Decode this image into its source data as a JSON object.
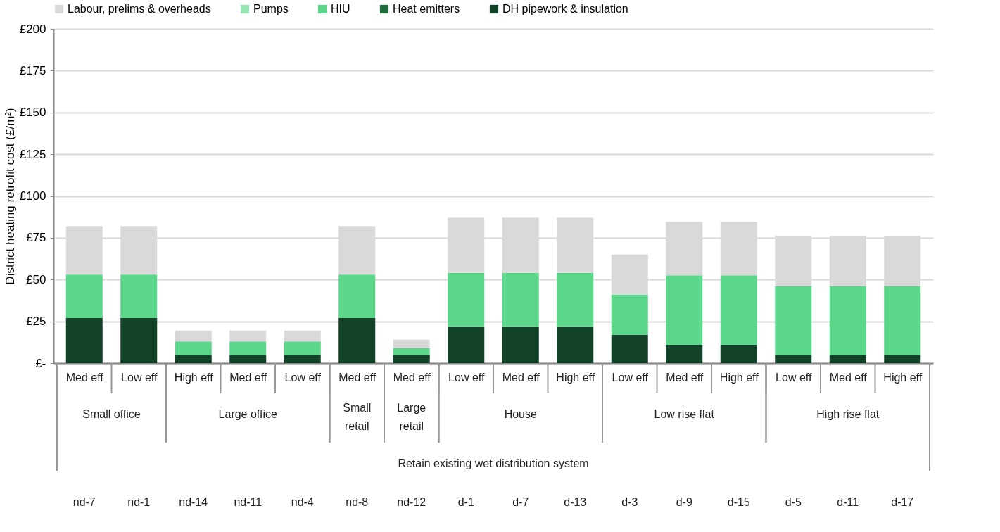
{
  "chart_data": {
    "type": "bar",
    "stacked": true,
    "ylabel": "District heating retrofit cost (£/m²)",
    "categories": [
      "Med eff",
      "Low eff",
      "High eff",
      "Med eff",
      "Low eff",
      "Med eff",
      "Med eff",
      "Low eff",
      "Med eff",
      "High eff",
      "Low eff",
      "Med eff",
      "High eff",
      "Low eff",
      "Med eff",
      "High eff"
    ],
    "series": [
      {
        "name": "DH pipework & insulation",
        "color": "#124228",
        "values": [
          27,
          27,
          5,
          5,
          5,
          27,
          5,
          22,
          22,
          22,
          17,
          11,
          11,
          5,
          5,
          5
        ]
      },
      {
        "name": "Heat emitters",
        "color": "#1e6b3c",
        "values": [
          0,
          0,
          0,
          0,
          0,
          0,
          0,
          0,
          0,
          0,
          0,
          0,
          0,
          0,
          0,
          0
        ]
      },
      {
        "name": "HIU",
        "color": "#5cd68a",
        "values": [
          26,
          26,
          8,
          8,
          8,
          26,
          4,
          32,
          32,
          32,
          24,
          41.5,
          41.5,
          41,
          41,
          41
        ]
      },
      {
        "name": "Pumps",
        "color": "#96e6b3",
        "values": [
          0,
          0,
          0,
          0,
          0,
          0,
          0,
          0,
          0,
          0,
          0,
          0,
          0,
          0,
          0,
          0
        ]
      },
      {
        "name": "Labour, prelims & overheads",
        "color": "#d9d9d9",
        "values": [
          29,
          29,
          6.5,
          6.5,
          6.5,
          29,
          5,
          33,
          33,
          33,
          24,
          32,
          32,
          30,
          30,
          30
        ]
      }
    ],
    "ylim": [
      0,
      200
    ],
    "yticks": [
      {
        "value": 0,
        "label": "£-"
      },
      {
        "value": 25,
        "label": "£25"
      },
      {
        "value": 50,
        "label": "£50"
      },
      {
        "value": 75,
        "label": "£75"
      },
      {
        "value": 100,
        "label": "£100"
      },
      {
        "value": 125,
        "label": "£125"
      },
      {
        "value": 150,
        "label": "£150"
      },
      {
        "value": 175,
        "label": "£175"
      },
      {
        "value": 200,
        "label": "£200"
      }
    ],
    "grid": "y",
    "legend": "top",
    "annotations": [
      "Small office",
      "Large office",
      "Small retail",
      "Large retail",
      "House",
      "Low rise flat",
      "High rise flat",
      "Retain existing wet distribution system",
      "nd-7",
      "nd-1",
      "nd-14",
      "nd-11",
      "nd-4",
      "nd-8",
      "nd-12",
      "d-1",
      "d-7",
      "d-13",
      "d-3",
      "d-9",
      "d-15",
      "d-5",
      "d-11",
      "d-17"
    ]
  }
}
